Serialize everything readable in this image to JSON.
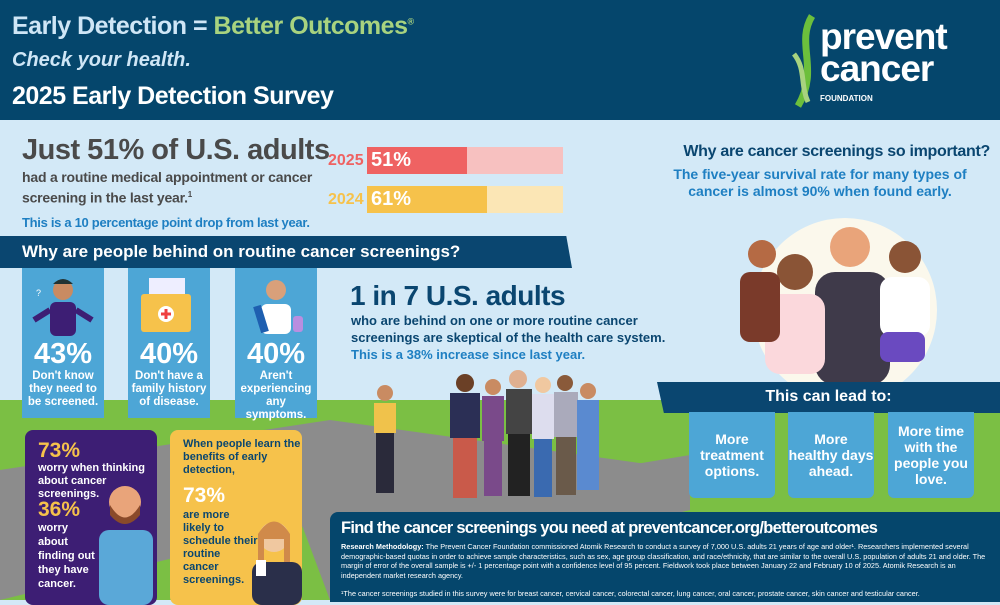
{
  "header": {
    "title_part1": "Early Detection",
    "title_equals": "=",
    "title_part2": "Better Outcomes",
    "title_mark": "®",
    "subtitle": "Check your health.",
    "survey_title": "2025 Early Detection Survey",
    "logo": {
      "line1": "prevent",
      "line2": "cancer",
      "line3": "FOUNDATION",
      "mark": "®"
    }
  },
  "headline_stat": {
    "title": "Just 51% of U.S. adults",
    "text": "had a routine medical appointment or cancer screening in the last year.",
    "footnote_mark": "1",
    "note": "This is a 10 percentage point drop from last year."
  },
  "comparison_bars": [
    {
      "year": "2025",
      "label": "51%",
      "value": 51,
      "color": "#ef6262",
      "track": "#f7c1c0"
    },
    {
      "year": "2024",
      "label": "61%",
      "value": 61,
      "color": "#f6c24b",
      "track": "#fbe6b5"
    }
  ],
  "reasons": {
    "heading": "Why are people behind on routine cancer screenings?",
    "items": [
      {
        "pct": "43%",
        "label": "Don't know they need to be screened.",
        "icon": "confused-person-icon"
      },
      {
        "pct": "40%",
        "label": "Don't have a family history of disease.",
        "icon": "medical-folder-icon"
      },
      {
        "pct": "40%",
        "label": "Aren't experiencing any symptoms.",
        "icon": "athlete-person-icon"
      }
    ]
  },
  "skeptical": {
    "title": "1 in 7 U.S. adults",
    "text1": "who are behind on one or more routine cancer",
    "text2": "screenings are skeptical of the health care system.",
    "note": "This is a 38% increase since last year."
  },
  "importance": {
    "heading": "Why are cancer screenings so important?",
    "text": "The five-year survival rate for many types of cancer is almost 90% when found early."
  },
  "outcomes": {
    "heading": "This can lead to:",
    "items": [
      "More treatment options.",
      "More healthy days ahead.",
      "More time with the people you love."
    ]
  },
  "worry": {
    "stat1": "73%",
    "text1": "worry when thinking about cancer screenings.",
    "stat2": "36%",
    "text2": "worry about finding out they have cancer."
  },
  "benefits": {
    "intro": "When people learn the benefits of early detection,",
    "stat": "73%",
    "text": "are more likely to schedule their routine cancer screenings."
  },
  "footer": {
    "title": "Find the cancer screenings you need at preventcancer.org/betteroutcomes",
    "methodology_label": "Research Methodology:",
    "methodology": " The Prevent Cancer Foundation commissioned Atomik Research to conduct a survey of 7,000 U.S. adults 21 years of age and older¹. Researchers implemented several demographic-based quotas in order to achieve sample characteristics, such as sex, age group classification, and race/ethnicity, that are similar to the overall U.S. population of adults 21 and older. The margin of error of the overall sample is +/- 1 percentage point with a confidence level of 95 percent. Fieldwork took place between January 22 and February 10 of 2025. Atomik Research is an independent market research agency.",
    "footnote": "¹The cancer screenings studied in this survey were for breast cancer, cervical cancer, colorectal cancer, lung cancer, oral cancer, prostate cancer, skin cancer and testicular cancer."
  },
  "colors": {
    "navy": "#05466c",
    "light_bg": "#d3e9f7",
    "card_blue": "#4da6d6",
    "green": "#7bbf44",
    "purple": "#3d1e74",
    "yellow": "#f6c24b"
  }
}
